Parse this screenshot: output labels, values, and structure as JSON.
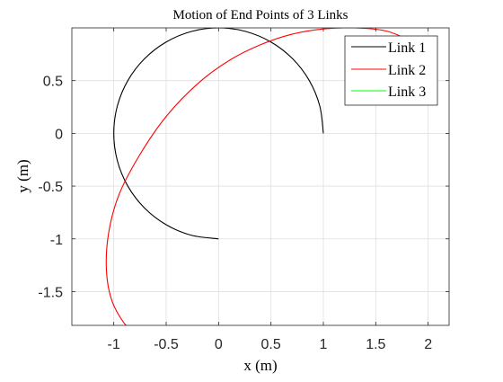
{
  "chart_data": {
    "type": "line",
    "title": "Motion of End Points of 3 Links",
    "xlabel": "x (m)",
    "ylabel": "y (m)",
    "xlim": [
      -1.4,
      2.2
    ],
    "ylim": [
      -1.82,
      1.0
    ],
    "xticks": [
      {
        "value": -1,
        "label": "-1"
      },
      {
        "value": -0.5,
        "label": "-0.5"
      },
      {
        "value": 0,
        "label": "0"
      },
      {
        "value": 0.5,
        "label": "0.5"
      },
      {
        "value": 1,
        "label": "1"
      },
      {
        "value": 1.5,
        "label": "1.5"
      },
      {
        "value": 2,
        "label": "2"
      }
    ],
    "yticks": [
      {
        "value": 0.5,
        "label": "0.5"
      },
      {
        "value": 0,
        "label": "0"
      },
      {
        "value": -0.5,
        "label": "-0.5"
      },
      {
        "value": -1,
        "label": "-1"
      },
      {
        "value": -1.5,
        "label": "-1.5"
      }
    ],
    "grid": true,
    "legend_position": "top-right",
    "series": [
      {
        "name": "Link 1",
        "color": "#000000",
        "x": [
          1.0,
          0.966,
          0.866,
          0.707,
          0.5,
          0.259,
          0.0,
          -0.259,
          -0.5,
          -0.707,
          -0.866,
          -0.966,
          -1.0,
          -0.966,
          -0.866,
          -0.707,
          -0.5,
          -0.259,
          0.0
        ],
        "y": [
          0.0,
          0.259,
          0.5,
          0.707,
          0.866,
          0.966,
          1.0,
          0.966,
          0.866,
          0.707,
          0.5,
          0.259,
          0.0,
          -0.259,
          -0.5,
          -0.707,
          -0.866,
          -0.966,
          -1.0
        ]
      },
      {
        "name": "Link 2",
        "color": "#ff0000",
        "x": [
          1.85,
          1.6,
          1.3,
          1.0,
          0.7,
          0.4,
          0.1,
          -0.2,
          -0.5,
          -0.75,
          -0.95,
          -1.05,
          -1.07,
          -1.02,
          -0.9,
          -0.8
        ],
        "y": [
          0.87,
          0.97,
          1.0,
          0.99,
          0.94,
          0.84,
          0.69,
          0.47,
          0.16,
          -0.2,
          -0.58,
          -0.95,
          -1.3,
          -1.58,
          -1.8,
          -1.88
        ]
      },
      {
        "name": "Link 3",
        "color": "#00ff00",
        "x": [],
        "y": []
      }
    ]
  }
}
